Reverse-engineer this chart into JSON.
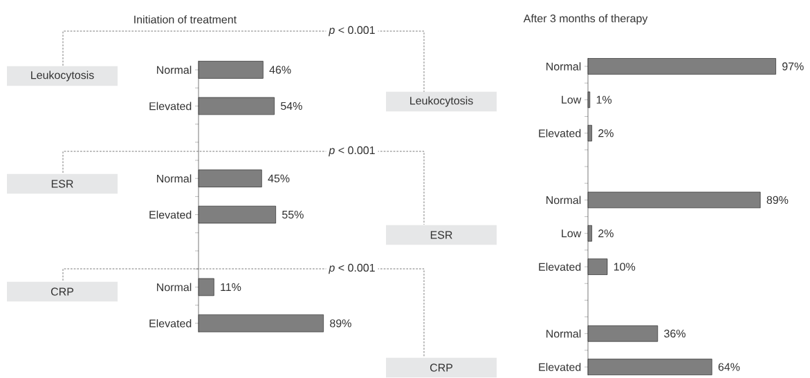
{
  "chart_data": [
    {
      "type": "bar",
      "orientation": "horizontal",
      "title": "Initiation of treatment",
      "color": "#7f7f7f",
      "tick_labels": "y",
      "categories": [
        "Normal",
        null,
        "Elevated",
        null,
        null,
        null,
        "Normal",
        null,
        "Elevated",
        null,
        null,
        null,
        "Normal",
        null,
        "Elevated"
      ],
      "values": [
        46,
        null,
        54,
        null,
        null,
        null,
        45,
        null,
        55,
        null,
        null,
        null,
        11,
        null,
        89
      ],
      "value_labels": [
        "46%",
        null,
        "54%",
        null,
        null,
        null,
        "45%",
        null,
        "55%",
        null,
        null,
        null,
        "11%",
        null,
        "89%"
      ],
      "annotations": [
        "Leukocytosis",
        "ESR",
        "CRP",
        "*p* < 0.001",
        "*p* < 0.001",
        "*p* < 0.001"
      ]
    },
    {
      "type": "bar",
      "orientation": "horizontal",
      "title": "After 3 months of therapy",
      "color": "#7f7f7f",
      "tick_labels": "y",
      "categories": [
        "Normal",
        null,
        "Low",
        null,
        "Elevated",
        null,
        null,
        null,
        "Normal",
        null,
        "Low",
        null,
        "Elevated",
        null,
        null,
        null,
        "Normal",
        null,
        "Elevated"
      ],
      "values": [
        97,
        null,
        1,
        null,
        2,
        null,
        null,
        null,
        89,
        null,
        2,
        null,
        10,
        null,
        null,
        null,
        36,
        null,
        64
      ],
      "value_labels": [
        "97%",
        null,
        "1%",
        null,
        "2%",
        null,
        null,
        null,
        "89%",
        null,
        "2%",
        null,
        "10%",
        null,
        null,
        null,
        "36%",
        null,
        "64%"
      ],
      "annotations": [
        "Leukocytosis",
        "ESR",
        "CRP"
      ]
    }
  ]
}
